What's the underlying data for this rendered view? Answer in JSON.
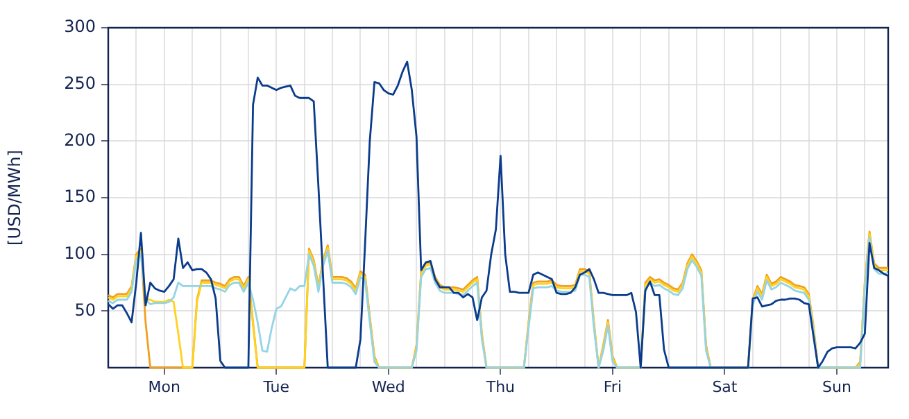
{
  "chart_data": {
    "type": "line",
    "ylabel": "[USD/MWh]",
    "ylim": [
      0,
      300
    ],
    "categories": [
      null,
      null,
      null,
      null,
      null,
      null,
      null,
      null,
      null,
      null,
      null,
      null,
      "Mon",
      null,
      null,
      null,
      null,
      null,
      null,
      null,
      null,
      null,
      null,
      null,
      null,
      null,
      null,
      null,
      null,
      null,
      null,
      null,
      null,
      null,
      null,
      null,
      "Tue",
      null,
      null,
      null,
      null,
      null,
      null,
      null,
      null,
      null,
      null,
      null,
      null,
      null,
      null,
      null,
      null,
      null,
      null,
      null,
      null,
      null,
      null,
      null,
      "Wed",
      null,
      null,
      null,
      null,
      null,
      null,
      null,
      null,
      null,
      null,
      null,
      null,
      null,
      null,
      null,
      null,
      null,
      null,
      null,
      null,
      null,
      null,
      null,
      "Thu",
      null,
      null,
      null,
      null,
      null,
      null,
      null,
      null,
      null,
      null,
      null,
      null,
      null,
      null,
      null,
      null,
      null,
      null,
      null,
      null,
      null,
      null,
      null,
      "Fri",
      null,
      null,
      null,
      null,
      null,
      null,
      null,
      null,
      null,
      null,
      null,
      null,
      null,
      null,
      null,
      null,
      null,
      null,
      null,
      null,
      null,
      null,
      null,
      "Sat",
      null,
      null,
      null,
      null,
      null,
      null,
      null,
      null,
      null,
      null,
      null,
      null,
      null,
      null,
      null,
      null,
      null,
      null,
      null,
      null,
      null,
      null,
      null,
      "Sun",
      null,
      null,
      null,
      null,
      null,
      null,
      null,
      null,
      null,
      null,
      null
    ],
    "yticks": [
      {
        "value": 0,
        "label": null
      },
      50,
      100,
      150,
      200,
      250,
      300
    ],
    "grid": true,
    "marker": "none",
    "series": [
      {
        "color": "#f0a020",
        "values": [
          64,
          62,
          65,
          65,
          65,
          72,
          100,
          105,
          40,
          0,
          0,
          0,
          0,
          0,
          0,
          0,
          0,
          0,
          0,
          60,
          77,
          77,
          77,
          75,
          74,
          72,
          78,
          80,
          80,
          72,
          80,
          40,
          0,
          0,
          0,
          0,
          0,
          0,
          0,
          0,
          0,
          0,
          0,
          105,
          95,
          72,
          95,
          108,
          80,
          80,
          80,
          79,
          76,
          70,
          85,
          82,
          45,
          10,
          0,
          0,
          0,
          0,
          0,
          0,
          0,
          0,
          20,
          85,
          92,
          93,
          80,
          73,
          71,
          71,
          71,
          70,
          69,
          73,
          77,
          80,
          30,
          0,
          0,
          0,
          0,
          0,
          0,
          0,
          0,
          0,
          40,
          75,
          76,
          76,
          76,
          77,
          73,
          72,
          72,
          72,
          73,
          87,
          87,
          85,
          40,
          0,
          20,
          42,
          10,
          0,
          0,
          0,
          0,
          0,
          0,
          75,
          80,
          77,
          78,
          75,
          73,
          70,
          69,
          75,
          92,
          100,
          94,
          86,
          20,
          0,
          0,
          0,
          0,
          0,
          0,
          0,
          0,
          0,
          60,
          72,
          65,
          82,
          74,
          76,
          80,
          78,
          76,
          73,
          72,
          71,
          65,
          37,
          0,
          0,
          0,
          0,
          0,
          0,
          0,
          0,
          0,
          5,
          76,
          120,
          92,
          88,
          88,
          88
        ]
      },
      {
        "color": "#ffd21f",
        "values": [
          62,
          60,
          63,
          63,
          63,
          70,
          98,
          103,
          60,
          60,
          58,
          58,
          58,
          60,
          58,
          30,
          0,
          0,
          0,
          58,
          75,
          75,
          75,
          73,
          72,
          70,
          76,
          78,
          78,
          70,
          78,
          38,
          0,
          0,
          0,
          0,
          0,
          0,
          0,
          0,
          0,
          0,
          0,
          103,
          93,
          70,
          93,
          106,
          78,
          78,
          78,
          77,
          74,
          68,
          83,
          80,
          43,
          8,
          0,
          0,
          0,
          0,
          0,
          0,
          0,
          0,
          18,
          83,
          90,
          91,
          78,
          71,
          69,
          69,
          69,
          68,
          67,
          71,
          75,
          78,
          28,
          0,
          0,
          0,
          0,
          0,
          0,
          0,
          0,
          0,
          38,
          73,
          74,
          74,
          74,
          75,
          71,
          70,
          70,
          70,
          71,
          85,
          85,
          83,
          38,
          0,
          18,
          40,
          8,
          0,
          0,
          0,
          0,
          0,
          0,
          73,
          78,
          75,
          76,
          73,
          71,
          68,
          67,
          73,
          90,
          98,
          92,
          84,
          18,
          0,
          0,
          0,
          0,
          0,
          0,
          0,
          0,
          0,
          58,
          70,
          63,
          80,
          72,
          74,
          78,
          76,
          74,
          71,
          70,
          69,
          63,
          35,
          0,
          0,
          0,
          0,
          0,
          0,
          0,
          0,
          0,
          3,
          74,
          118,
          90,
          86,
          86,
          86
        ]
      },
      {
        "color": "#94d4e6",
        "values": [
          59,
          57,
          60,
          60,
          60,
          67,
          95,
          100,
          60,
          56,
          57,
          57,
          57,
          58,
          62,
          75,
          72,
          72,
          72,
          72,
          72,
          72,
          72,
          70,
          69,
          67,
          73,
          75,
          75,
          67,
          75,
          60,
          40,
          15,
          14,
          35,
          52,
          54,
          62,
          70,
          68,
          72,
          72,
          100,
          90,
          67,
          90,
          103,
          75,
          75,
          75,
          74,
          71,
          65,
          80,
          77,
          40,
          5,
          0,
          0,
          0,
          0,
          0,
          0,
          0,
          0,
          15,
          80,
          87,
          88,
          75,
          68,
          66,
          66,
          66,
          65,
          64,
          68,
          72,
          75,
          25,
          0,
          0,
          0,
          0,
          0,
          0,
          0,
          0,
          0,
          35,
          70,
          71,
          71,
          71,
          72,
          68,
          67,
          67,
          67,
          68,
          82,
          82,
          80,
          35,
          0,
          15,
          37,
          5,
          0,
          0,
          0,
          0,
          0,
          0,
          70,
          75,
          72,
          73,
          70,
          68,
          65,
          64,
          70,
          87,
          95,
          89,
          81,
          15,
          0,
          0,
          0,
          0,
          0,
          0,
          0,
          0,
          0,
          55,
          67,
          60,
          77,
          69,
          71,
          75,
          73,
          71,
          68,
          67,
          66,
          60,
          32,
          0,
          0,
          0,
          0,
          0,
          0,
          0,
          0,
          0,
          0,
          71,
          115,
          87,
          83,
          83,
          83
        ]
      },
      {
        "color": "#0b3c8c",
        "values": [
          56,
          52,
          55,
          55,
          48,
          40,
          75,
          119,
          55,
          75,
          70,
          68,
          67,
          72,
          78,
          114,
          88,
          93,
          86,
          87,
          87,
          84,
          78,
          61,
          6,
          0,
          0,
          0,
          0,
          0,
          0,
          232,
          256,
          249,
          249,
          247,
          245,
          247,
          248,
          249,
          240,
          238,
          238,
          238,
          235,
          160,
          80,
          0,
          0,
          0,
          0,
          0,
          0,
          0,
          25,
          110,
          200,
          252,
          251,
          245,
          242,
          241,
          249,
          261,
          270,
          245,
          204,
          86,
          93,
          94,
          78,
          71,
          71,
          71,
          66,
          66,
          62,
          65,
          62,
          42,
          62,
          68,
          100,
          122,
          187,
          100,
          67,
          67,
          66,
          66,
          66,
          82,
          84,
          82,
          80,
          78,
          66,
          65,
          65,
          66,
          71,
          82,
          84,
          87,
          78,
          66,
          66,
          65,
          64,
          64,
          64,
          64,
          66,
          49,
          0,
          68,
          76,
          64,
          64,
          16,
          0,
          0,
          0,
          0,
          0,
          0,
          0,
          0,
          0,
          0,
          0,
          0,
          0,
          0,
          0,
          0,
          0,
          0,
          61,
          62,
          54,
          55,
          56,
          59,
          60,
          60,
          61,
          61,
          60,
          57,
          56,
          28,
          0,
          6,
          14,
          17,
          18,
          18,
          18,
          18,
          17,
          22,
          30,
          110,
          88,
          86,
          83,
          81
        ]
      }
    ]
  }
}
